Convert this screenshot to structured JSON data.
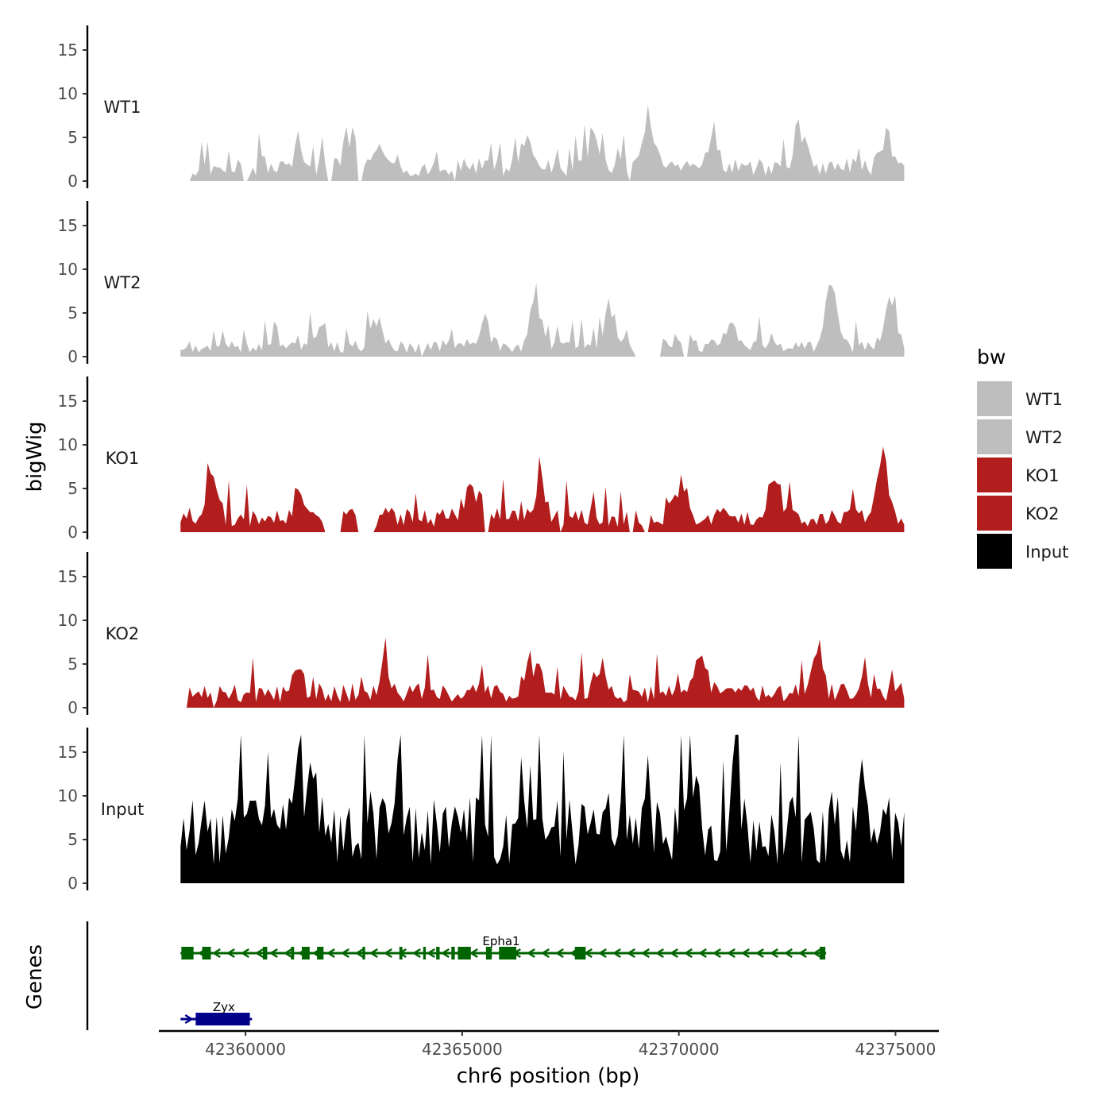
{
  "chart_data": {
    "type": "area",
    "subtype": "genome-browser-tracks",
    "xlabel": "chr6 position (bp)",
    "xlim": [
      42358000,
      42376000
    ],
    "x_ticks": [
      {
        "value": 42360000,
        "label": "42360000"
      },
      {
        "value": 42365000,
        "label": "42365000"
      },
      {
        "value": 42370000,
        "label": "42370000"
      },
      {
        "value": 42375000,
        "label": "42375000"
      }
    ],
    "ylabel": "bigWig",
    "ylim": [
      0,
      17.5
    ],
    "y_ticks": [
      {
        "value": 0,
        "label": "0"
      },
      {
        "value": 5,
        "label": "5"
      },
      {
        "value": 10,
        "label": "10"
      },
      {
        "value": 15,
        "label": "15"
      }
    ],
    "data_x": [
      42358500,
      42375200
    ],
    "tracks": [
      {
        "name": "WT1",
        "color": "#bebebe",
        "seed": 11,
        "base": 1.6,
        "peaks": [
          [
            42361200,
            2.0
          ],
          [
            42362400,
            4.0
          ],
          [
            42363100,
            3.0
          ],
          [
            42366500,
            4.0
          ],
          [
            42368000,
            4.0
          ],
          [
            42369300,
            6.0
          ],
          [
            42370800,
            4.0
          ],
          [
            42372800,
            5.0
          ],
          [
            42374800,
            4.0
          ]
        ],
        "gaps": [
          [
            42358500,
            42358750
          ],
          [
            42359950,
            42360050
          ],
          [
            42361900,
            42362000
          ],
          [
            42362600,
            42362700
          ],
          [
            42364800,
            42364900
          ],
          [
            42368800,
            42368900
          ]
        ]
      },
      {
        "name": "WT2",
        "color": "#bebebe",
        "seed": 23,
        "base": 1.2,
        "peaks": [
          [
            42361700,
            2.0
          ],
          [
            42363000,
            3.0
          ],
          [
            42365500,
            3.0
          ],
          [
            42366700,
            4.5
          ],
          [
            42368400,
            4.5
          ],
          [
            42371200,
            3.0
          ],
          [
            42373500,
            7.0
          ],
          [
            42374900,
            6.0
          ]
        ],
        "gaps": [
          [
            42358650,
            42358700
          ],
          [
            42364000,
            42364100
          ],
          [
            42369000,
            42369600
          ],
          [
            42370100,
            42370200
          ]
        ]
      },
      {
        "name": "KO1",
        "color": "#b21e1e",
        "seed": 37,
        "base": 1.7,
        "peaks": [
          [
            42359200,
            4.0
          ],
          [
            42361200,
            2.5
          ],
          [
            42365300,
            3.5
          ],
          [
            42366800,
            3.5
          ],
          [
            42370000,
            3.0
          ],
          [
            42372200,
            5.0
          ],
          [
            42374700,
            8.0
          ]
        ],
        "gaps": [
          [
            42361800,
            42362200
          ],
          [
            42362600,
            42363000
          ],
          [
            42365500,
            42365600
          ],
          [
            42367200,
            42367300
          ],
          [
            42368800,
            42368950
          ],
          [
            42369200,
            42369300
          ]
        ]
      },
      {
        "name": "KO2",
        "color": "#b21e1e",
        "seed": 51,
        "base": 1.7,
        "peaks": [
          [
            42361200,
            2.5
          ],
          [
            42363200,
            2.5
          ],
          [
            42366700,
            4.0
          ],
          [
            42368200,
            3.5
          ],
          [
            42370500,
            5.0
          ],
          [
            42373200,
            4.0
          ]
        ],
        "gaps": [
          [
            42358500,
            42358700
          ],
          [
            42359200,
            42359300
          ]
        ]
      },
      {
        "name": "Input",
        "color": "#000000",
        "seed": 71,
        "base": 6.0,
        "peaks": [
          [
            42361100,
            7.0
          ],
          [
            42361500,
            6.0
          ],
          [
            42368200,
            2.0
          ],
          [
            42370300,
            4.0
          ],
          [
            42374200,
            2.0
          ]
        ],
        "gaps": []
      }
    ],
    "genes_track_title": "Genes",
    "genes": [
      {
        "name": "Epha1",
        "color": "#006400",
        "start": 42358500,
        "end": 42373400,
        "strand": "-",
        "label_x": 42365900,
        "row": 0,
        "exons": [
          [
            42358520,
            42358800
          ],
          [
            42359000,
            42359200
          ],
          [
            42360400,
            42360500
          ],
          [
            42361050,
            42361120
          ],
          [
            42361300,
            42361480
          ],
          [
            42361650,
            42361800
          ],
          [
            42362700,
            42362760
          ],
          [
            42363550,
            42363620
          ],
          [
            42364100,
            42364160
          ],
          [
            42364400,
            42364480
          ],
          [
            42364750,
            42364830
          ],
          [
            42364900,
            42365200
          ],
          [
            42365550,
            42365680
          ],
          [
            42365850,
            42366250
          ],
          [
            42367600,
            42367850
          ],
          [
            42373250,
            42373380
          ]
        ]
      },
      {
        "name": "Zyx",
        "color": "#00008b",
        "start": 42358500,
        "end": 42360150,
        "strand": "+",
        "label_x": 42359500,
        "row": 1,
        "exons": [
          [
            42358850,
            42360100
          ]
        ]
      }
    ],
    "legend": {
      "title": "bw",
      "position": "right",
      "entries": [
        {
          "label": "WT1",
          "color": "#bebebe"
        },
        {
          "label": "WT2",
          "color": "#bebebe"
        },
        {
          "label": "KO1",
          "color": "#b21e1e"
        },
        {
          "label": "KO2",
          "color": "#b21e1e"
        },
        {
          "label": "Input",
          "color": "#000000"
        }
      ]
    },
    "grid": false
  }
}
